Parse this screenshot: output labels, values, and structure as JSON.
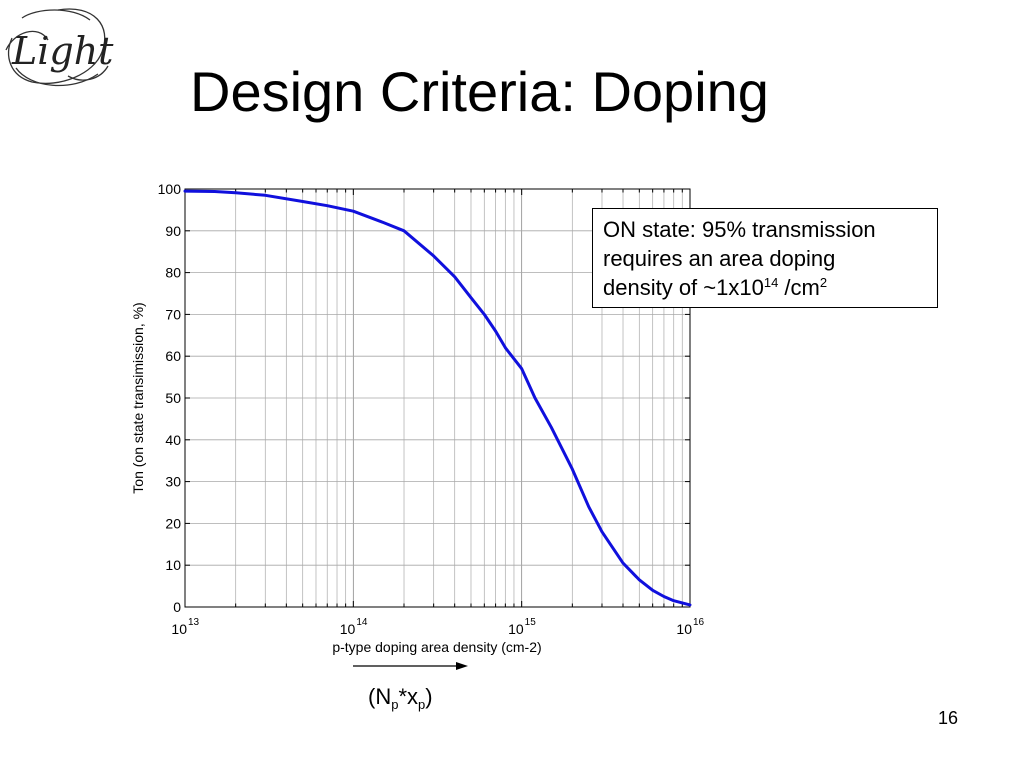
{
  "slide": {
    "title": "Design Criteria: Doping",
    "page_number": "16",
    "logo_text": "Light",
    "annotation": {
      "line1": "ON state: 95% transmission",
      "line2": "requires an area doping",
      "line3_prefix": "density of ~1x10",
      "line3_exp": "14",
      "line3_unit": " /cm",
      "line3_unit_exp": "2"
    },
    "np_label": {
      "open": "(N",
      "sub1": "p",
      "mid": "*x",
      "sub2": "p",
      "close": ")"
    }
  },
  "chart_data": {
    "type": "line",
    "xscale": "log",
    "xlim": [
      10000000000000.0,
      1e+16
    ],
    "ylim": [
      0,
      100
    ],
    "xlabel": "p-type doping area density (cm-2)",
    "ylabel": "Ton (on state transimission, %)",
    "grid": true,
    "x_ticks": [
      {
        "base": "10",
        "exp": "13",
        "value": 10000000000000.0
      },
      {
        "base": "10",
        "exp": "14",
        "value": 100000000000000.0
      },
      {
        "base": "10",
        "exp": "15",
        "value": 1000000000000000.0
      },
      {
        "base": "10",
        "exp": "16",
        "value": 1e+16
      }
    ],
    "y_ticks": [
      "0",
      "10",
      "20",
      "30",
      "40",
      "50",
      "60",
      "70",
      "80",
      "90",
      "100"
    ],
    "series": [
      {
        "color": "#1010dd",
        "x": [
          10000000000000.0,
          15000000000000.0,
          20000000000000.0,
          30000000000000.0,
          50000000000000.0,
          70000000000000.0,
          100000000000000.0,
          150000000000000.0,
          200000000000000.0,
          300000000000000.0,
          400000000000000.0,
          500000000000000.0,
          600000000000000.0,
          700000000000000.0,
          800000000000000.0,
          1000000000000000.0,
          1200000000000000.0,
          1500000000000000.0,
          2000000000000000.0,
          2500000000000000.0,
          3000000000000000.0,
          4000000000000000.0,
          5000000000000000.0,
          6000000000000000.0,
          7000000000000000.0,
          8000000000000000.0,
          1e+16
        ],
        "values": [
          99.5,
          99.4,
          99.1,
          98.5,
          97,
          96,
          94.7,
          92,
          90,
          84,
          79,
          74,
          70,
          66,
          62,
          57,
          50,
          43,
          33,
          24,
          18,
          10.5,
          6.5,
          4,
          2.5,
          1.5,
          0.5
        ]
      }
    ]
  }
}
